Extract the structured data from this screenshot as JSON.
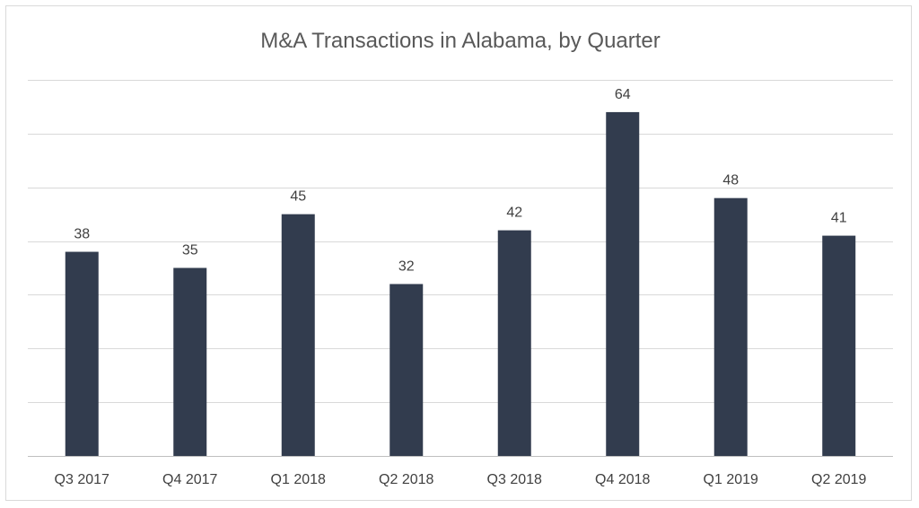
{
  "chart_data": {
    "type": "bar",
    "title": "M&A Transactions in Alabama, by Quarter",
    "xlabel": "",
    "ylabel": "",
    "categories": [
      "Q3 2017",
      "Q4 2017",
      "Q1 2018",
      "Q2 2018",
      "Q3 2018",
      "Q4 2018",
      "Q1 2019",
      "Q2 2019"
    ],
    "values": [
      38,
      35,
      45,
      32,
      42,
      64,
      48,
      41
    ],
    "ylim": [
      0,
      70
    ],
    "y_tick_step": 10,
    "y_tick_labels_visible": false,
    "grid": true,
    "legend": "none",
    "data_labels": true,
    "bar_color": "#323c4e"
  }
}
